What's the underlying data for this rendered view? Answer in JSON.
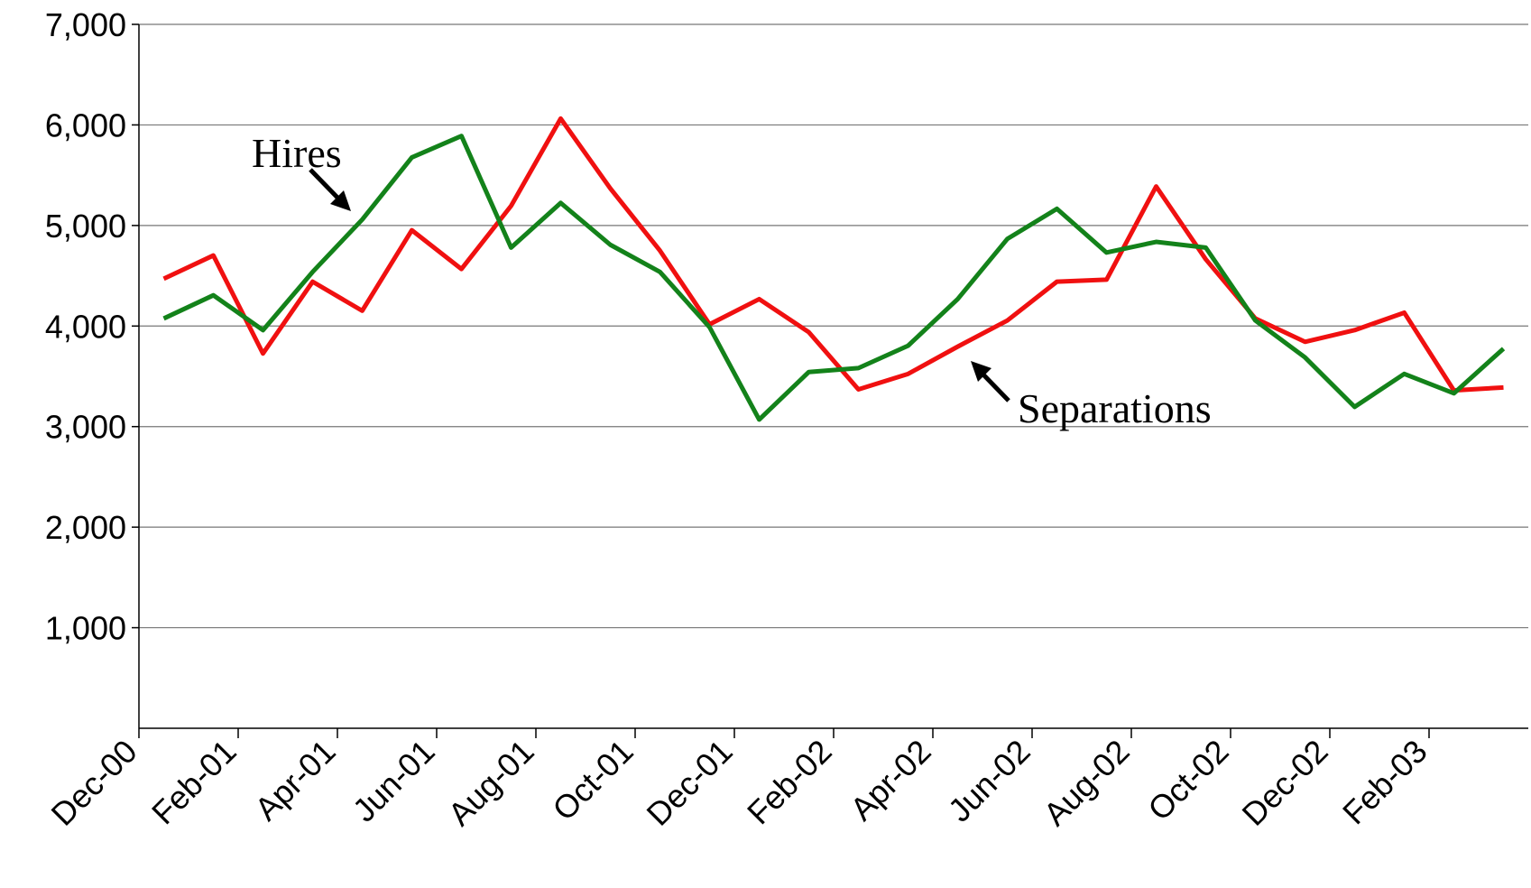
{
  "chart_data": {
    "type": "line",
    "categories": [
      "Dec-00",
      null,
      "Feb-01",
      null,
      "Apr-01",
      null,
      "Jun-01",
      null,
      "Aug-01",
      null,
      "Oct-01",
      null,
      "Dec-01",
      null,
      "Feb-02",
      null,
      "Apr-02",
      null,
      "Jun-02",
      null,
      "Aug-02",
      null,
      "Oct-02",
      null,
      "Dec-02",
      null,
      "Feb-03",
      null
    ],
    "series": [
      {
        "name": "Hires",
        "color": "#13821a",
        "values": [
          4075,
          4306,
          3959,
          4538,
          5059,
          5677,
          5890,
          4780,
          5224,
          4808,
          4538,
          3988,
          3070,
          3543,
          3582,
          3804,
          4268,
          4866,
          5166,
          4731,
          4837,
          4780,
          4055,
          3688,
          3196,
          3524,
          3331,
          3775
        ]
      },
      {
        "name": "Separations",
        "color": "#f01010",
        "values": [
          4470,
          4702,
          3727,
          4441,
          4152,
          4953,
          4567,
          5195,
          6063,
          5368,
          4750,
          4017,
          4268,
          3939,
          3370,
          3524,
          3795,
          4055,
          4441,
          4461,
          5388,
          4664,
          4075,
          3843,
          3959,
          4133,
          3360,
          3389
        ]
      }
    ],
    "ylim": [
      0,
      7000
    ],
    "yticks": [
      {
        "value": 1000,
        "label": "1,000"
      },
      {
        "value": 2000,
        "label": "2,000"
      },
      {
        "value": 3000,
        "label": "3,000"
      },
      {
        "value": 4000,
        "label": "4,000"
      },
      {
        "value": 5000,
        "label": "5,000"
      },
      {
        "value": 6000,
        "label": "6,000"
      },
      {
        "value": 7000,
        "label": "7,000"
      }
    ],
    "grid": true
  }
}
